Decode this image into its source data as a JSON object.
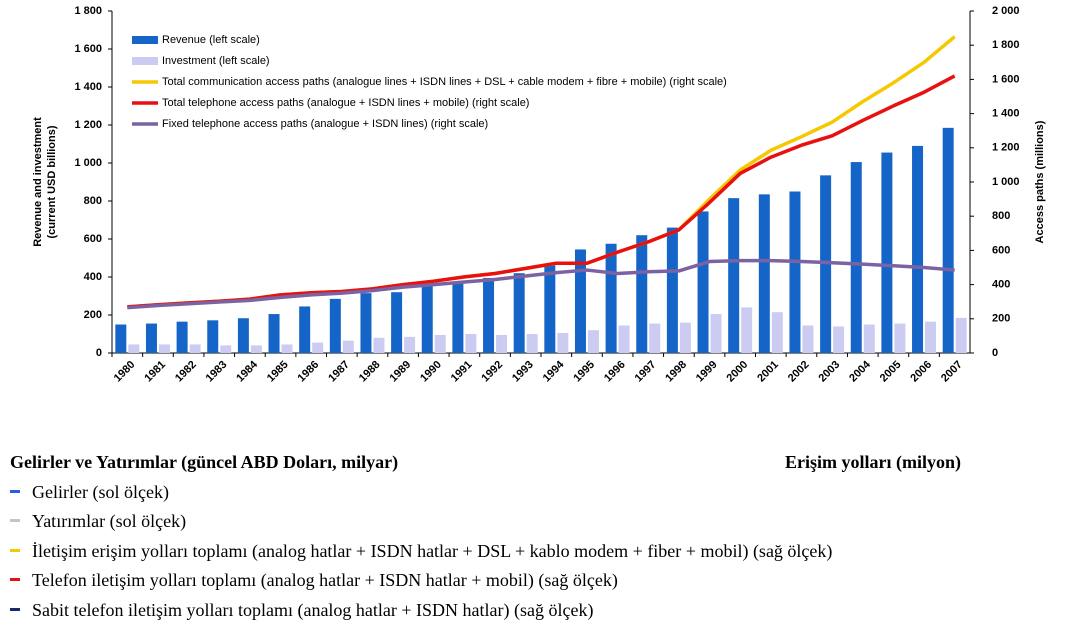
{
  "chart_data": {
    "type": "bar",
    "ylabel": [
      "Revenue and investment",
      "(current USD billions)"
    ],
    "y2label": "Access paths (millions)",
    "categories": [
      "1980",
      "1981",
      "1982",
      "1983",
      "1984",
      "1985",
      "1986",
      "1987",
      "1988",
      "1989",
      "1990",
      "1991",
      "1992",
      "1993",
      "1994",
      "1995",
      "1996",
      "1997",
      "1998",
      "1999",
      "2000",
      "2001",
      "2002",
      "2003",
      "2004",
      "2005",
      "2006",
      "2007"
    ],
    "series": [
      {
        "name": "Revenue (left scale)",
        "type": "bar",
        "color": "#1565c8",
        "values": [
          150,
          155,
          165,
          172,
          183,
          205,
          245,
          285,
          315,
          320,
          360,
          375,
          395,
          420,
          460,
          545,
          575,
          620,
          660,
          745,
          815,
          835,
          850,
          935,
          1005,
          1055,
          1090,
          1185
        ]
      },
      {
        "name": "Investment (left scale)",
        "type": "bar",
        "color": "#ccccf2",
        "values": [
          45,
          45,
          45,
          40,
          40,
          45,
          55,
          65,
          80,
          85,
          95,
          100,
          95,
          100,
          105,
          120,
          145,
          155,
          160,
          205,
          240,
          215,
          145,
          140,
          150,
          155,
          165,
          185
        ]
      },
      {
        "name": "Total communication access paths (analogue lines + ISDN lines + DSL + cable modem + fibre + mobile) (right scale)",
        "type": "line",
        "axis": "y2",
        "color": "#f5c800",
        "values": [
          270,
          282,
          293,
          303,
          315,
          340,
          352,
          360,
          375,
          400,
          420,
          445,
          465,
          495,
          525,
          525,
          590,
          650,
          720,
          900,
          1070,
          1185,
          1265,
          1350,
          1470,
          1580,
          1700,
          1850
        ]
      },
      {
        "name": "Total telephone access paths (analogue + ISDN lines + mobile) (right scale)",
        "type": "line",
        "axis": "y2",
        "color": "#e81010",
        "values": [
          270,
          282,
          293,
          303,
          315,
          340,
          352,
          360,
          375,
          400,
          420,
          445,
          465,
          495,
          525,
          525,
          590,
          650,
          720,
          880,
          1050,
          1145,
          1215,
          1270,
          1360,
          1445,
          1525,
          1620
        ]
      },
      {
        "name": "Fixed telephone access paths (analogue + ISDN lines) (right scale)",
        "type": "line",
        "axis": "y2",
        "color": "#7b62a3",
        "values": [
          265,
          278,
          288,
          298,
          308,
          325,
          340,
          350,
          365,
          385,
          400,
          415,
          430,
          450,
          470,
          485,
          465,
          475,
          480,
          535,
          540,
          540,
          535,
          528,
          520,
          510,
          500,
          485
        ]
      }
    ],
    "ylim": [
      0,
      1800
    ],
    "yticks": [
      0,
      200,
      400,
      600,
      800,
      {
        "value": 1000,
        "label": "1 000"
      },
      {
        "value": 1200,
        "label": "1 200"
      },
      {
        "value": 1400,
        "label": "1 400"
      },
      {
        "value": 1600,
        "label": "1 600"
      },
      {
        "value": 1800,
        "label": "1 800"
      }
    ],
    "y2lim": [
      0,
      2000
    ],
    "y2ticks": [
      0,
      200,
      400,
      600,
      800,
      {
        "value": 1000,
        "label": "1 000"
      },
      {
        "value": 1200,
        "label": "1 200"
      },
      {
        "value": 1400,
        "label": "1 400"
      },
      {
        "value": 1600,
        "label": "1 600"
      },
      {
        "value": 1800,
        "label": "1 800"
      },
      {
        "value": 2000,
        "label": "2 000"
      }
    ],
    "legend": "top-left"
  },
  "caption": {
    "left_title": "Gelirler ve Yatırımlar (güncel ABD Doları, milyar)",
    "right_title": "Erişim yolları (milyon)",
    "items": [
      "Gelirler (sol ölçek)",
      "Yatırımlar (sol ölçek)",
      "İletişim erişim yolları toplamı (analog hatlar + ISDN hatlar + DSL + kablo modem + fiber + mobil) (sağ ölçek)",
      "Telefon iletişim yolları toplamı (analog hatlar + ISDN hatlar + mobil) (sağ ölçek)",
      "Sabit telefon iletişim yolları toplamı (analog hatlar + ISDN hatlar) (sağ ölçek)"
    ]
  }
}
